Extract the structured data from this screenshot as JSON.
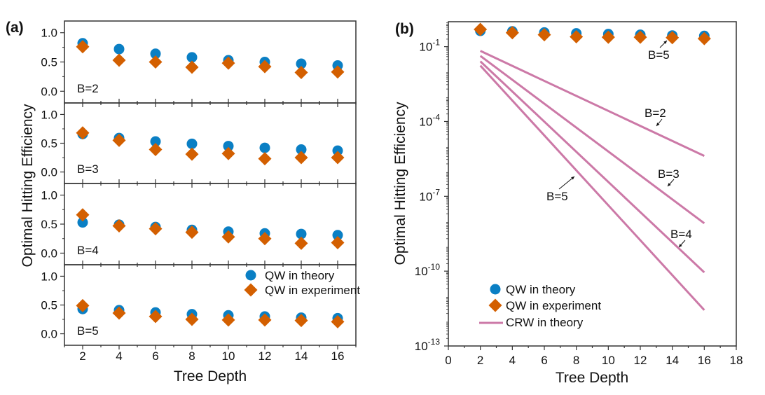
{
  "colors": {
    "theory": "#0a7fc4",
    "experiment": "#d35f00",
    "crw": "#cc79a7",
    "axis": "#333333"
  },
  "chart_data": [
    {
      "type": "scatter",
      "panel_label": "(a)",
      "xlabel": "Tree Depth",
      "ylabel": "Optimal Hitting Efficiency",
      "x": [
        2,
        4,
        6,
        8,
        10,
        12,
        14,
        16
      ],
      "xlim": [
        1,
        17
      ],
      "xticks": [
        "2",
        "4",
        "6",
        "8",
        "10",
        "12",
        "14",
        "16"
      ],
      "ylim": [
        -0.2,
        1.2
      ],
      "yticks": [
        "0.0",
        "0.5",
        "1.0"
      ],
      "legend": {
        "placement": "right of B=5 subplot",
        "entries": [
          "QW in theory",
          "QW in experiment"
        ]
      },
      "subplots": [
        {
          "label": "B=2",
          "series": [
            {
              "name": "QW in theory",
              "values": [
                0.82,
                0.72,
                0.64,
                0.58,
                0.53,
                0.5,
                0.47,
                0.44
              ]
            },
            {
              "name": "QW in experiment",
              "values": [
                0.76,
                0.53,
                0.5,
                0.41,
                0.48,
                0.42,
                0.32,
                0.33
              ]
            }
          ]
        },
        {
          "label": "B=3",
          "series": [
            {
              "name": "QW in theory",
              "values": [
                0.66,
                0.59,
                0.53,
                0.49,
                0.45,
                0.42,
                0.39,
                0.37
              ]
            },
            {
              "name": "QW in experiment",
              "values": [
                0.68,
                0.55,
                0.39,
                0.31,
                0.32,
                0.23,
                0.25,
                0.25
              ]
            }
          ]
        },
        {
          "label": "B=4",
          "series": [
            {
              "name": "QW in theory",
              "values": [
                0.53,
                0.49,
                0.45,
                0.4,
                0.37,
                0.34,
                0.33,
                0.31
              ]
            },
            {
              "name": "QW in experiment",
              "values": [
                0.66,
                0.47,
                0.42,
                0.36,
                0.28,
                0.25,
                0.17,
                0.18
              ]
            }
          ]
        },
        {
          "label": "B=5",
          "series": [
            {
              "name": "QW in theory",
              "values": [
                0.43,
                0.41,
                0.37,
                0.34,
                0.32,
                0.3,
                0.28,
                0.27
              ]
            },
            {
              "name": "QW in experiment",
              "values": [
                0.49,
                0.36,
                0.3,
                0.25,
                0.24,
                0.24,
                0.23,
                0.21
              ]
            }
          ]
        }
      ]
    },
    {
      "type": "line",
      "panel_label": "(b)",
      "xlabel": "Tree Depth",
      "ylabel": "Optimal Hitting Efficiency",
      "yscale": "log",
      "xlim": [
        0,
        18
      ],
      "xticks": [
        "0",
        "2",
        "4",
        "6",
        "8",
        "10",
        "12",
        "14",
        "16",
        "18"
      ],
      "ylim": [
        1e-13,
        1
      ],
      "yticks": [
        {
          "base": "10",
          "exp": "-1",
          "value": 0.1
        },
        {
          "base": "10",
          "exp": "-4",
          "value": 0.0001
        },
        {
          "base": "10",
          "exp": "-7",
          "value": 1e-07
        },
        {
          "base": "10",
          "exp": "-10",
          "value": 1e-10
        },
        {
          "base": "10",
          "exp": "-13",
          "value": 1e-13
        }
      ],
      "x": [
        2,
        4,
        6,
        8,
        10,
        12,
        14,
        16
      ],
      "scatter_series": [
        {
          "name": "QW in theory",
          "label": "B=5",
          "values": [
            0.43,
            0.41,
            0.37,
            0.34,
            0.32,
            0.3,
            0.28,
            0.27
          ]
        },
        {
          "name": "QW in experiment",
          "label": "B=5",
          "values": [
            0.49,
            0.36,
            0.3,
            0.25,
            0.24,
            0.24,
            0.23,
            0.21
          ]
        }
      ],
      "crw_series": [
        {
          "name": "CRW in theory",
          "label": "B=2",
          "x_start": 2,
          "x_end": 16,
          "log10_start": -1.17,
          "log10_end": -5.38
        },
        {
          "name": "CRW in theory",
          "label": "B=3",
          "x_start": 2,
          "x_end": 16,
          "log10_start": -1.37,
          "log10_end": -8.08
        },
        {
          "name": "CRW in theory",
          "label": "B=4",
          "x_start": 2,
          "x_end": 16,
          "log10_start": -1.59,
          "log10_end": -10.05
        },
        {
          "name": "CRW in theory",
          "label": "B=5",
          "x_start": 2,
          "x_end": 16,
          "log10_start": -1.76,
          "log10_end": -11.56
        }
      ],
      "annotations": [
        "B=5",
        "B=2",
        "B=3",
        "B=4",
        "B=5"
      ],
      "legend": {
        "placement": "bottom-left",
        "entries": [
          "QW in theory",
          "QW in experiment",
          "CRW in theory"
        ]
      }
    }
  ]
}
